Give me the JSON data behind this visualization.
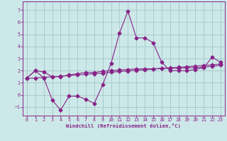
{
  "xlabel": "Windchill (Refroidissement éolien,°C)",
  "xlim": [
    -0.5,
    23.5
  ],
  "ylim": [
    -1.7,
    7.7
  ],
  "xticks": [
    0,
    1,
    2,
    3,
    4,
    5,
    6,
    7,
    8,
    9,
    10,
    11,
    12,
    13,
    14,
    15,
    16,
    17,
    18,
    19,
    20,
    21,
    22,
    23
  ],
  "yticks": [
    -1,
    0,
    1,
    2,
    3,
    4,
    5,
    6,
    7
  ],
  "bg_color": "#cce8e8",
  "grid_color": "#aacccc",
  "line_color": "#882288",
  "line2_x": [
    0,
    1,
    2,
    3,
    4,
    5,
    6,
    7,
    8,
    9,
    10,
    11,
    12,
    13,
    14,
    15,
    16,
    17,
    18,
    19,
    20,
    21,
    22,
    23
  ],
  "line2_y": [
    1.4,
    2.0,
    1.4,
    -0.4,
    -1.25,
    -0.1,
    -0.1,
    -0.35,
    -0.7,
    0.85,
    2.6,
    5.1,
    6.9,
    4.7,
    4.7,
    4.3,
    2.7,
    2.0,
    2.0,
    2.0,
    2.1,
    2.25,
    3.1,
    2.7
  ],
  "line1_x": [
    0,
    1,
    2,
    3,
    4,
    5,
    6,
    7,
    8,
    9,
    10,
    11,
    12,
    13,
    14,
    15,
    16,
    17,
    18,
    19,
    20,
    21,
    22,
    23
  ],
  "line1_y": [
    1.4,
    2.0,
    1.9,
    1.5,
    1.5,
    1.65,
    1.75,
    1.85,
    1.85,
    1.95,
    2.0,
    2.05,
    2.1,
    2.15,
    2.15,
    2.15,
    2.2,
    2.2,
    2.2,
    2.25,
    2.25,
    2.3,
    2.35,
    2.45
  ],
  "line3_x": [
    0,
    1,
    2,
    3,
    4,
    5,
    6,
    7,
    8,
    9,
    10,
    11,
    12,
    13,
    14,
    15,
    16,
    17,
    18,
    19,
    20,
    21,
    22,
    23
  ],
  "line3_y": [
    1.35,
    1.4,
    1.45,
    1.5,
    1.55,
    1.6,
    1.65,
    1.7,
    1.75,
    1.8,
    1.87,
    1.93,
    1.98,
    2.03,
    2.08,
    2.13,
    2.18,
    2.23,
    2.28,
    2.33,
    2.38,
    2.43,
    2.48,
    2.55
  ]
}
